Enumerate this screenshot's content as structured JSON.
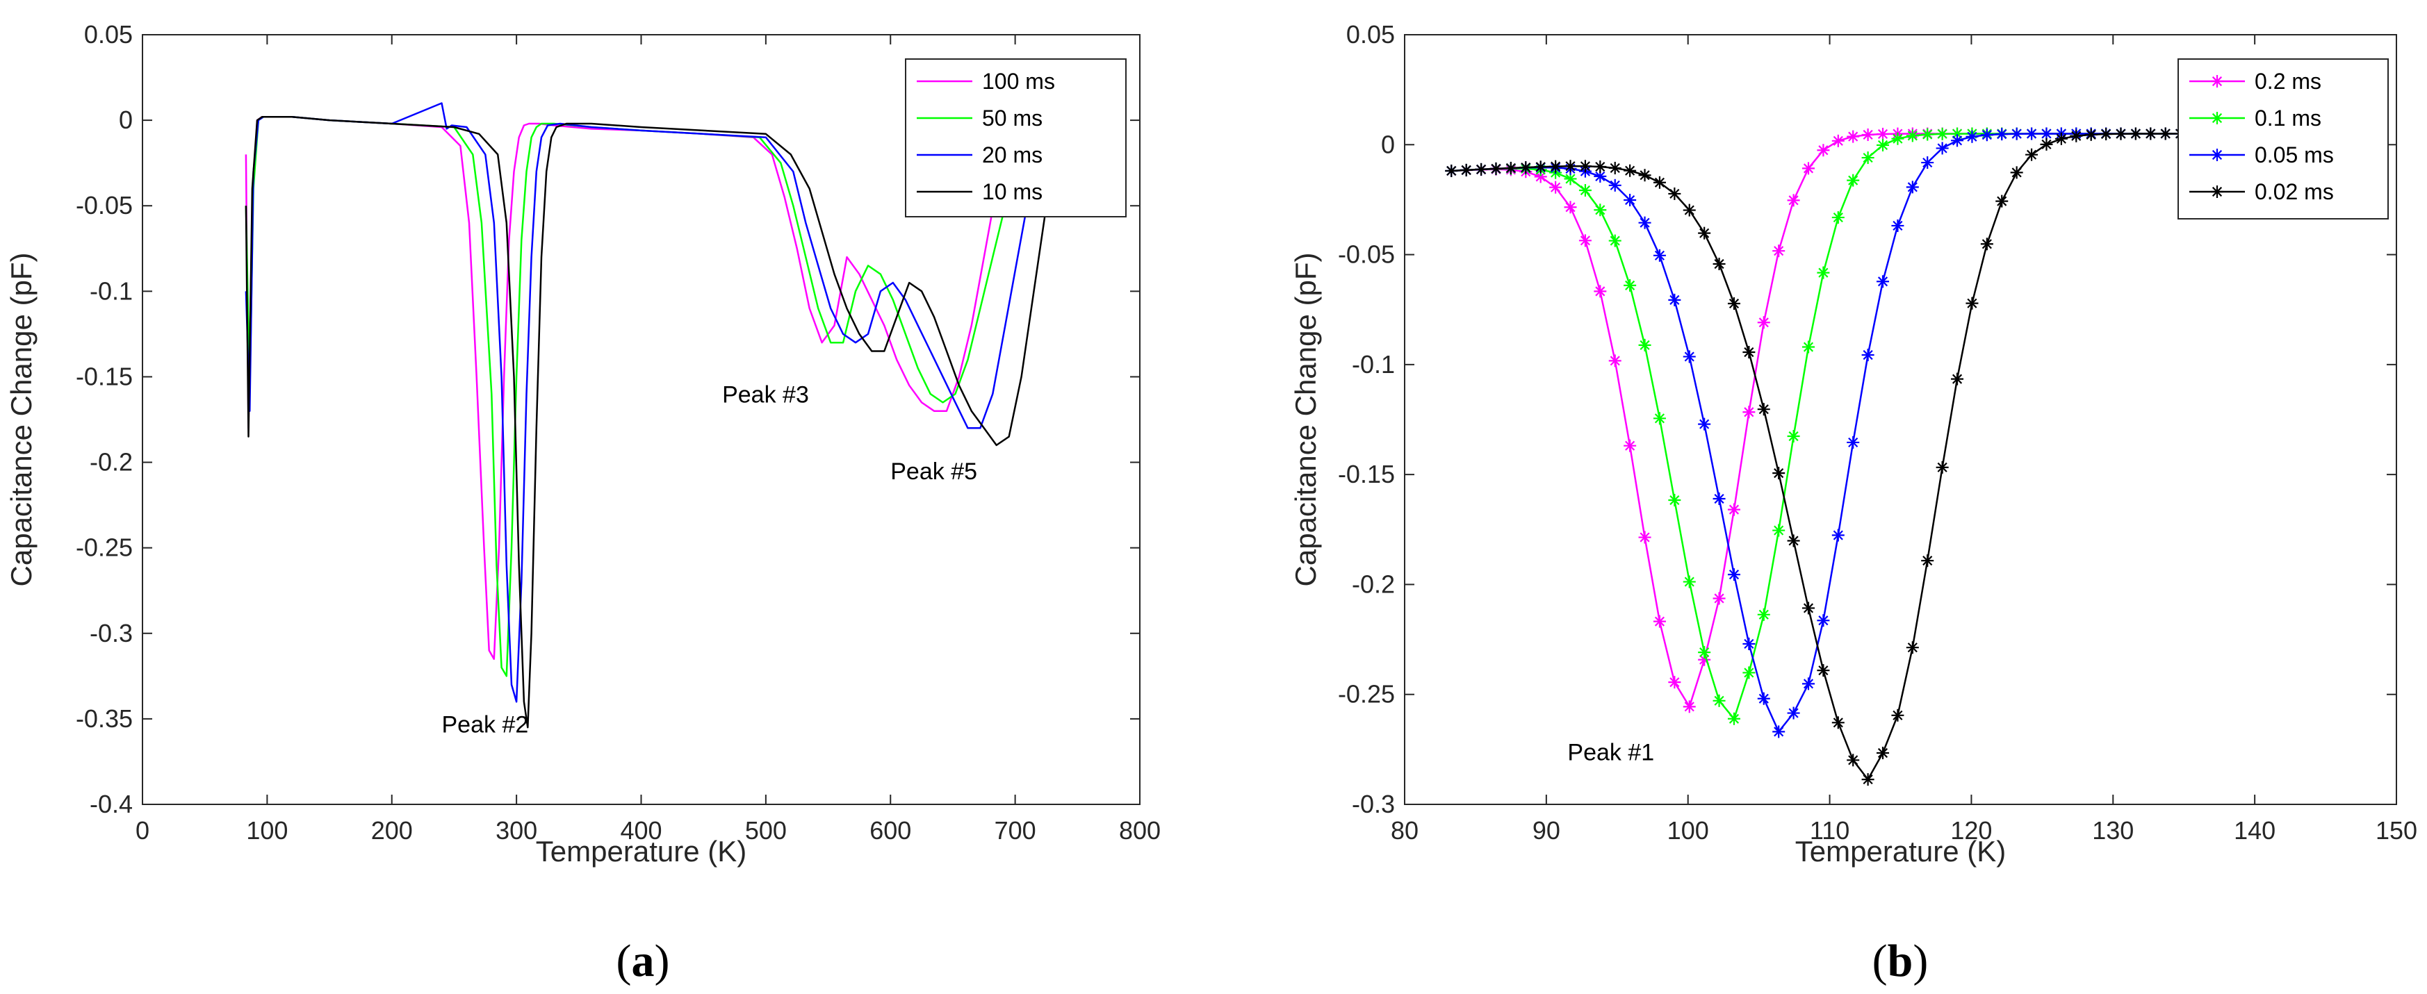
{
  "chart_data": [
    {
      "type": "line",
      "panel_label": "(a)",
      "panel_letter": "a",
      "xlabel": "Temperature (K)",
      "ylabel": "Capacitance Change (pF)",
      "xlim": [
        0,
        800
      ],
      "ylim": [
        -0.4,
        0.05
      ],
      "xticks": [
        0,
        100,
        200,
        300,
        400,
        500,
        600,
        700,
        800
      ],
      "yticks": [
        0.05,
        0,
        -0.05,
        -0.1,
        -0.15,
        -0.2,
        -0.25,
        -0.3,
        -0.35,
        -0.4
      ],
      "ytick_labels": [
        "0.05",
        "0",
        "-0.05",
        "-0.1",
        "-0.15",
        "-0.2",
        "-0.25",
        "-0.3",
        "-0.35",
        "-0.4"
      ],
      "legend_position": "top-right",
      "series": [
        {
          "name": "100 ms",
          "color": "#ff00ff",
          "x": [
            83,
            85,
            88,
            92,
            96,
            100,
            120,
            150,
            200,
            240,
            255,
            262,
            268,
            274,
            278,
            282,
            286,
            290,
            294,
            298,
            302,
            306,
            310,
            318,
            330,
            360,
            400,
            450,
            490,
            505,
            515,
            525,
            535,
            545,
            555,
            565,
            575,
            585,
            595,
            605,
            615,
            625,
            635,
            645,
            655,
            665,
            675,
            685,
            692
          ],
          "y": [
            -0.02,
            -0.18,
            -0.05,
            0.0,
            0.002,
            0.002,
            0.002,
            0.0,
            -0.002,
            -0.004,
            -0.015,
            -0.06,
            -0.15,
            -0.25,
            -0.31,
            -0.315,
            -0.25,
            -0.15,
            -0.07,
            -0.03,
            -0.01,
            -0.003,
            -0.002,
            -0.002,
            -0.003,
            -0.005,
            -0.006,
            -0.008,
            -0.01,
            -0.02,
            -0.045,
            -0.075,
            -0.11,
            -0.13,
            -0.12,
            -0.08,
            -0.09,
            -0.105,
            -0.12,
            -0.14,
            -0.155,
            -0.165,
            -0.17,
            -0.17,
            -0.15,
            -0.12,
            -0.08,
            -0.04,
            -0.01
          ]
        },
        {
          "name": "50 ms",
          "color": "#00ff00",
          "x": [
            83,
            86,
            89,
            93,
            97,
            100,
            120,
            150,
            200,
            250,
            265,
            272,
            280,
            284,
            288,
            292,
            296,
            300,
            304,
            308,
            312,
            316,
            320,
            330,
            360,
            400,
            450,
            495,
            512,
            522,
            532,
            542,
            552,
            562,
            572,
            582,
            592,
            602,
            612,
            622,
            632,
            642,
            652,
            662,
            672,
            682,
            692,
            702,
            712
          ],
          "y": [
            -0.05,
            -0.16,
            -0.04,
            0.0,
            0.002,
            0.002,
            0.002,
            0.0,
            -0.002,
            -0.004,
            -0.02,
            -0.06,
            -0.16,
            -0.26,
            -0.32,
            -0.325,
            -0.25,
            -0.15,
            -0.07,
            -0.03,
            -0.01,
            -0.004,
            -0.002,
            -0.002,
            -0.004,
            -0.006,
            -0.008,
            -0.01,
            -0.025,
            -0.05,
            -0.08,
            -0.11,
            -0.13,
            -0.13,
            -0.1,
            -0.085,
            -0.09,
            -0.105,
            -0.125,
            -0.145,
            -0.16,
            -0.165,
            -0.16,
            -0.14,
            -0.11,
            -0.08,
            -0.05,
            -0.02,
            -0.005
          ]
        },
        {
          "name": "20 ms",
          "color": "#0000ff",
          "x": [
            83,
            86,
            89,
            93,
            97,
            100,
            120,
            150,
            200,
            240,
            244,
            248,
            260,
            275,
            282,
            288,
            292,
            296,
            300,
            304,
            308,
            312,
            316,
            320,
            325,
            335,
            360,
            400,
            450,
            500,
            522,
            532,
            542,
            552,
            562,
            572,
            582,
            592,
            602,
            612,
            622,
            632,
            642,
            652,
            662,
            672,
            682,
            692,
            702,
            712,
            722
          ],
          "y": [
            -0.1,
            -0.17,
            -0.03,
            0.0,
            0.002,
            0.002,
            0.002,
            0.0,
            -0.002,
            0.01,
            -0.005,
            -0.003,
            -0.004,
            -0.02,
            -0.06,
            -0.15,
            -0.26,
            -0.33,
            -0.34,
            -0.27,
            -0.16,
            -0.08,
            -0.03,
            -0.01,
            -0.003,
            -0.002,
            -0.004,
            -0.006,
            -0.008,
            -0.01,
            -0.03,
            -0.06,
            -0.085,
            -0.11,
            -0.125,
            -0.13,
            -0.125,
            -0.1,
            -0.095,
            -0.105,
            -0.12,
            -0.135,
            -0.15,
            -0.165,
            -0.18,
            -0.18,
            -0.16,
            -0.12,
            -0.08,
            -0.04,
            -0.01
          ]
        },
        {
          "name": "10 ms",
          "color": "#000000",
          "x": [
            83,
            85,
            88,
            92,
            96,
            100,
            120,
            150,
            200,
            250,
            270,
            285,
            292,
            298,
            302,
            306,
            309,
            312,
            316,
            320,
            324,
            328,
            332,
            340,
            360,
            400,
            450,
            500,
            520,
            535,
            545,
            555,
            565,
            575,
            585,
            595,
            605,
            615,
            625,
            635,
            645,
            655,
            665,
            675,
            685,
            695,
            705,
            715,
            725,
            735
          ],
          "y": [
            -0.05,
            -0.185,
            -0.04,
            0.0,
            0.002,
            0.002,
            0.002,
            0.0,
            -0.002,
            -0.004,
            -0.008,
            -0.02,
            -0.06,
            -0.15,
            -0.26,
            -0.34,
            -0.355,
            -0.3,
            -0.18,
            -0.08,
            -0.03,
            -0.01,
            -0.004,
            -0.002,
            -0.002,
            -0.004,
            -0.006,
            -0.008,
            -0.02,
            -0.04,
            -0.065,
            -0.09,
            -0.11,
            -0.125,
            -0.135,
            -0.135,
            -0.115,
            -0.095,
            -0.1,
            -0.115,
            -0.135,
            -0.155,
            -0.17,
            -0.18,
            -0.19,
            -0.185,
            -0.15,
            -0.1,
            -0.05,
            -0.005
          ]
        }
      ],
      "annotations": [
        {
          "text": "Peak #2",
          "x": 240,
          "y": -0.358
        },
        {
          "text": "Peak #3",
          "x": 465,
          "y": -0.165
        },
        {
          "text": "Peak #5",
          "x": 600,
          "y": -0.21
        }
      ]
    },
    {
      "type": "line",
      "panel_label": "(b)",
      "panel_letter": "b",
      "xlabel": "Temperature (K)",
      "ylabel": "Capacitance Change (pF)",
      "xlim": [
        80,
        150
      ],
      "ylim": [
        -0.3,
        0.05
      ],
      "xticks": [
        80,
        90,
        100,
        110,
        120,
        130,
        140,
        150
      ],
      "yticks": [
        0.05,
        0,
        -0.05,
        -0.1,
        -0.15,
        -0.2,
        -0.25,
        -0.3
      ],
      "ytick_labels": [
        "0.05",
        "0",
        "-0.05",
        "-0.1",
        "-0.15",
        "-0.2",
        "-0.25",
        "-0.3"
      ],
      "legend_position": "top-right",
      "series": [
        {
          "name": "0.2 ms",
          "color": "#ff00ff",
          "peak_T": 100.2,
          "peak_depth": 0.248,
          "width_left": 5.3,
          "width_right": 5.0
        },
        {
          "name": "0.1 ms",
          "color": "#00ff00",
          "peak_T": 103.3,
          "peak_depth": 0.254,
          "width_left": 6.0,
          "width_right": 5.3
        },
        {
          "name": "0.05 ms",
          "color": "#0000ff",
          "peak_T": 107.2,
          "peak_depth": 0.264,
          "width_left": 6.8,
          "width_right": 5.6
        },
        {
          "name": "0.02 ms",
          "color": "#000000",
          "peak_T": 113.2,
          "peak_depth": 0.284,
          "width_left": 8.2,
          "width_right": 6.0
        }
      ],
      "annotations": [
        {
          "text": "Peak #1",
          "x": 91.5,
          "y": -0.28
        }
      ]
    }
  ]
}
